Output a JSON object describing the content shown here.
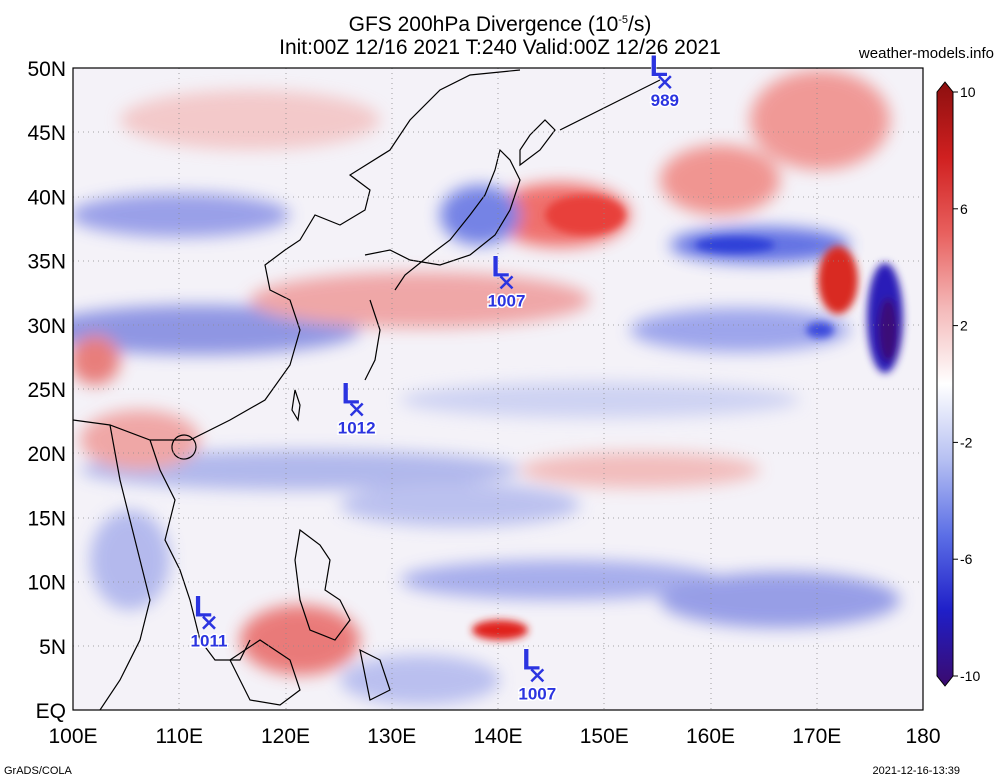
{
  "title": {
    "line1_main": "GFS 200hPa Divergence (10",
    "line1_sup": "-5",
    "line1_tail": "/s)",
    "line2": "Init:00Z 12/16 2021 T:240 Valid:00Z 12/26 2021"
  },
  "source_site": "weather-models.info",
  "map": {
    "lon_range": [
      100,
      180
    ],
    "lat_range": [
      0,
      50
    ],
    "lon_labels": [
      "100E",
      "110E",
      "120E",
      "130E",
      "140E",
      "150E",
      "160E",
      "170E",
      "180"
    ],
    "lat_labels": [
      "EQ",
      "5N",
      "10N",
      "15N",
      "20N",
      "25N",
      "30N",
      "35N",
      "40N",
      "45N",
      "50N"
    ],
    "lows": [
      {
        "lon": 155.7,
        "lat": 48.9,
        "pressure": "989",
        "symbol": "L"
      },
      {
        "lon": 140.8,
        "lat": 33.3,
        "pressure": "1007",
        "symbol": "L"
      },
      {
        "lon": 126.7,
        "lat": 23.4,
        "pressure": "1012",
        "symbol": "L"
      },
      {
        "lon": 112.8,
        "lat": 6.8,
        "pressure": "1011",
        "symbol": "L"
      },
      {
        "lon": 143.7,
        "lat": 2.7,
        "pressure": "1007",
        "symbol": "L"
      }
    ],
    "colors": {
      "low_marker": "#2b34e0",
      "positive": "#e0261e",
      "negative": "#2a3fd6"
    }
  },
  "colorbar": {
    "labels": [
      "10",
      "6",
      "2",
      "-2",
      "-6",
      "-10"
    ],
    "values": [
      10,
      6,
      2,
      -2,
      -6,
      -10
    ],
    "stops": [
      "#3b0a6e",
      "#1f1fc8",
      "#5c6fe6",
      "#b6c0f2",
      "#ffffff",
      "#f4b9b9",
      "#e8605e",
      "#d02020",
      "#8c0f0f"
    ]
  },
  "footer": {
    "left": "GrADS/COLA",
    "right": "2021-12-16-13:39"
  }
}
